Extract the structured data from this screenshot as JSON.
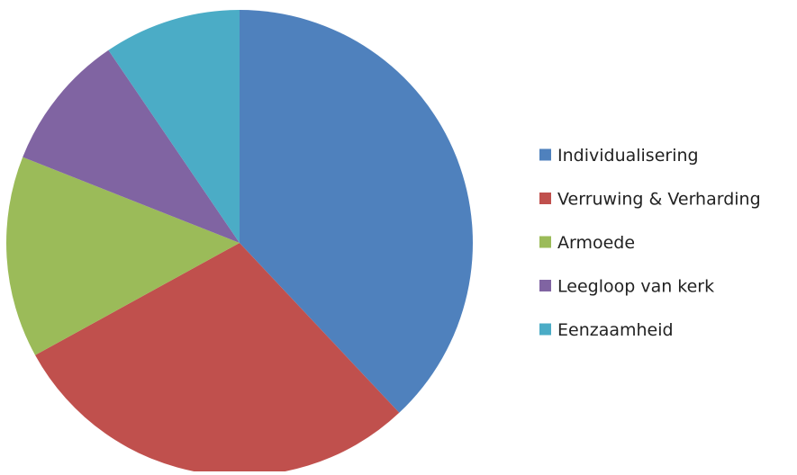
{
  "chart_data": {
    "type": "pie",
    "title": "",
    "categories": [
      "Individualisering",
      "Verruwing & Verharding",
      "Armoede",
      "Leegloop van kerk",
      "Eenzaamheid"
    ],
    "values": [
      38,
      29,
      14,
      9.5,
      9.5
    ],
    "colors": [
      "#4F81BD",
      "#C0504D",
      "#9BBB59",
      "#8064A2",
      "#4BACC6"
    ],
    "legend_position": "right",
    "start_angle": "12 o'clock",
    "direction": "clockwise"
  }
}
